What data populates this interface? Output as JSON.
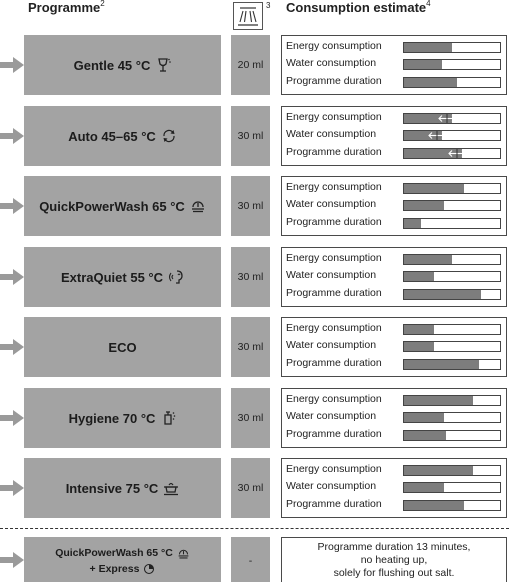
{
  "header": {
    "programme": "Programme",
    "programme_sup": "2",
    "detergent_sup": "3",
    "consumption": "Consumption estimate",
    "consumption_sup": "4"
  },
  "labels": {
    "energy": "Energy consumption",
    "water": "Water consumption",
    "duration": "Programme duration"
  },
  "programmes": [
    {
      "name": "Gentle 45 °C",
      "icon": "wine-glass-icon",
      "detergent": "20 ml",
      "energy": 0.5,
      "water": 0.4,
      "duration": 0.55,
      "ranged": false
    },
    {
      "name": "Auto 45–65 °C",
      "icon": "auto-cycle-icon",
      "detergent": "30 ml",
      "energy": 0.5,
      "water": 0.4,
      "duration": 0.6,
      "ranged": true
    },
    {
      "name": "QuickPowerWash 65 °C",
      "icon": "quick-power-wash-icon",
      "detergent": "30 ml",
      "energy": 0.62,
      "water": 0.42,
      "duration": 0.18,
      "ranged": false
    },
    {
      "name": "ExtraQuiet 55 °C",
      "icon": "extra-quiet-icon",
      "detergent": "30 ml",
      "energy": 0.5,
      "water": 0.31,
      "duration": 0.8,
      "ranged": false
    },
    {
      "name": "ECO",
      "icon": "",
      "detergent": "30 ml",
      "energy": 0.31,
      "water": 0.31,
      "duration": 0.78,
      "ranged": false
    },
    {
      "name": "Hygiene 70 °C",
      "icon": "hygiene-icon",
      "detergent": "30 ml",
      "energy": 0.72,
      "water": 0.42,
      "duration": 0.44,
      "ranged": false
    },
    {
      "name": "Intensive 75 °C",
      "icon": "intensive-pot-icon",
      "detergent": "30 ml",
      "energy": 0.72,
      "water": 0.42,
      "duration": 0.63,
      "ranged": false
    }
  ],
  "express": {
    "line1": "QuickPowerWash 65 °C",
    "line2": "+ Express",
    "detergent": "-",
    "note1": "Programme duration 13 minutes,",
    "note2": "no heating up,",
    "note3": "solely for flushing out salt."
  }
}
